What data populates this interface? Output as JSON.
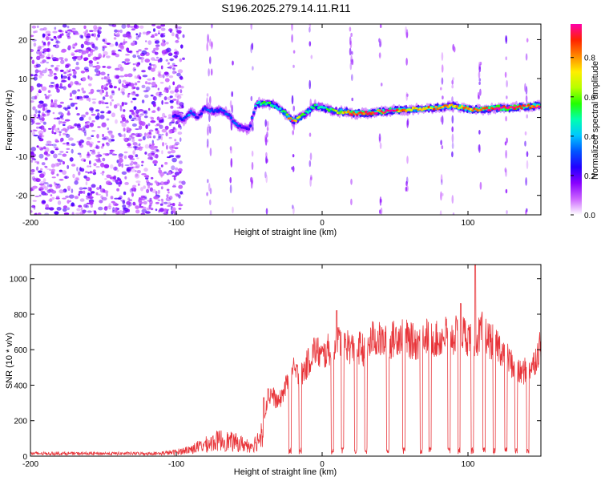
{
  "title": "S196.2025.279.14.11.R11",
  "colors": {
    "snr_line": "#e8353a",
    "ridge_low": "#6a1fd1",
    "noise": "#8a3ff0"
  },
  "chart_data": [
    {
      "type": "heatmap",
      "name": "spectrogram",
      "xlabel": "Height of straight line (km)",
      "ylabel": "Frequency (Hz)",
      "xlim": [
        -200,
        150
      ],
      "ylim": [
        -25,
        24
      ],
      "xticks": [
        -200,
        -100,
        0,
        100
      ],
      "xtick_labels": [
        "-200",
        "-100",
        "0",
        "100"
      ],
      "yticks": [
        -20,
        -10,
        0,
        10,
        20
      ],
      "ytick_labels": [
        "-20",
        "-10",
        "0",
        "10",
        "20"
      ],
      "colorbar": {
        "label": "Normalized spectral amplitude",
        "range": [
          0,
          0.97
        ],
        "ticks": [
          0,
          0.2,
          0.4,
          0.6,
          0.8
        ],
        "tick_labels": [
          "0.0",
          "0.2",
          "0.4",
          "0.6",
          "0.8"
        ],
        "colormap": [
          "#ffffff",
          "#cc66ff",
          "#8800ff",
          "#2200ff",
          "#0055ff",
          "#00c8ff",
          "#00ffb0",
          "#22ff00",
          "#b8ff00",
          "#ffee00",
          "#ff8800",
          "#ff2200",
          "#ff00aa"
        ]
      },
      "ridge": {
        "description_free": true,
        "x": [
          -100,
          -95,
          -90,
          -85,
          -80,
          -75,
          -70,
          -65,
          -60,
          -55,
          -50,
          -45,
          -40,
          -35,
          -30,
          -25,
          -20,
          -15,
          -10,
          -5,
          0,
          5,
          10,
          15,
          20,
          30,
          40,
          50,
          60,
          70,
          80,
          90,
          100,
          110,
          120,
          130,
          140,
          150
        ],
        "freq": [
          0.5,
          -0.5,
          1.5,
          0.0,
          2.5,
          1.5,
          2.0,
          1.0,
          -1.5,
          -2.5,
          -3.0,
          3.5,
          3.8,
          3.5,
          2.5,
          1.0,
          -1.0,
          0.0,
          1.5,
          3.0,
          2.5,
          2.0,
          1.5,
          1.5,
          1.0,
          1.2,
          1.5,
          1.8,
          2.0,
          2.2,
          2.5,
          3.0,
          2.2,
          2.0,
          2.5,
          2.5,
          2.8,
          3.0
        ],
        "amplitude": [
          0.25,
          0.3,
          0.35,
          0.2,
          0.35,
          0.3,
          0.3,
          0.3,
          0.35,
          0.25,
          0.2,
          0.45,
          0.55,
          0.5,
          0.45,
          0.6,
          0.9,
          0.55,
          0.5,
          0.5,
          0.45,
          0.55,
          0.6,
          0.7,
          0.85,
          0.9,
          0.9,
          0.9,
          0.7,
          0.75,
          0.8,
          0.7,
          0.8,
          0.85,
          0.95,
          0.95,
          0.9,
          0.85
        ]
      }
    },
    {
      "type": "line",
      "name": "snr",
      "xlabel": "Height of straight line (km)",
      "ylabel": "SNR (10 * v/v)",
      "xlim": [
        -200,
        150
      ],
      "ylim": [
        0,
        1080
      ],
      "xticks": [
        -200,
        -100,
        0,
        100
      ],
      "xtick_labels": [
        "-200",
        "-100",
        "0",
        "100"
      ],
      "yticks": [
        0,
        200,
        400,
        600,
        800,
        1000
      ],
      "ytick_labels": [
        "0",
        "200",
        "400",
        "600",
        "800",
        "1000"
      ],
      "envelope": {
        "x": [
          -200,
          -150,
          -130,
          -110,
          -100,
          -90,
          -80,
          -70,
          -60,
          -50,
          -45,
          -40,
          -35,
          -30,
          -25,
          -20,
          -15,
          -10,
          -5,
          0,
          5,
          10,
          15,
          20,
          25,
          30,
          35,
          40,
          45,
          50,
          55,
          60,
          65,
          70,
          75,
          80,
          85,
          90,
          95,
          100,
          105,
          110,
          115,
          120,
          125,
          130,
          135,
          140,
          145,
          150
        ],
        "y": [
          15,
          15,
          35,
          25,
          35,
          60,
          100,
          140,
          120,
          90,
          120,
          250,
          380,
          320,
          420,
          520,
          480,
          560,
          650,
          600,
          650,
          680,
          700,
          650,
          660,
          640,
          720,
          700,
          680,
          720,
          740,
          700,
          690,
          730,
          720,
          700,
          740,
          720,
          760,
          720,
          700,
          760,
          700,
          680,
          620,
          560,
          500,
          520,
          560,
          680
        ]
      },
      "dropouts_x": [
        -22,
        -15,
        7,
        14,
        23,
        30,
        45,
        56,
        68,
        74,
        87,
        94,
        103,
        111,
        118,
        126,
        133,
        141
      ],
      "spikes": [
        {
          "x": 10,
          "y": 820
        },
        {
          "x": 95,
          "y": 860
        },
        {
          "x": 105,
          "y": 1080
        },
        {
          "x": -40,
          "y": 330
        },
        {
          "x": -37,
          "y": 380
        }
      ]
    }
  ]
}
